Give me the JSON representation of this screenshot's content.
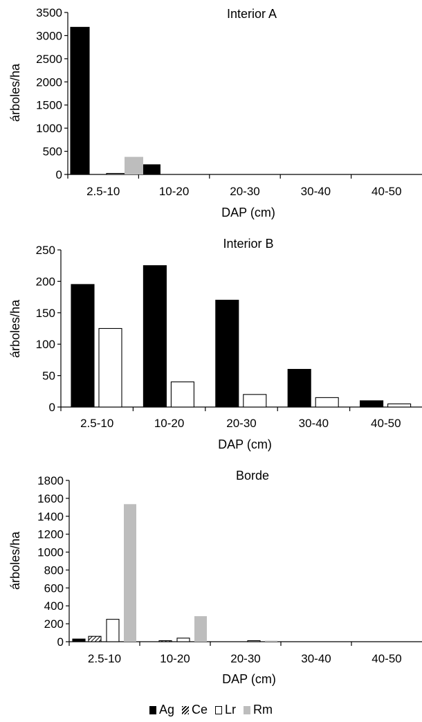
{
  "colors": {
    "Ag": "#000000",
    "Ce": "hatch",
    "Lr": "#ffffff",
    "Rm": "#bdbdbd"
  },
  "legend": {
    "Ag": "Ag",
    "Ce": "Ce",
    "Lr": "Lr",
    "Rm": "Rm"
  },
  "chart_data": [
    {
      "type": "bar",
      "title": "Interior A",
      "xlabel": "DAP (cm)",
      "ylabel": "árboles/ha",
      "categories": [
        "2.5-10",
        "10-20",
        "20-30",
        "30-40",
        "40-50"
      ],
      "ylim": [
        0,
        3500
      ],
      "yticks": [
        0,
        500,
        1000,
        1500,
        2000,
        2500,
        3000,
        3500
      ],
      "series": [
        {
          "name": "Ag",
          "values": [
            3180,
            210,
            0,
            0,
            0
          ]
        },
        {
          "name": "Ce",
          "values": [
            0,
            0,
            0,
            0,
            0
          ]
        },
        {
          "name": "Lr",
          "values": [
            20,
            0,
            0,
            0,
            0
          ]
        },
        {
          "name": "Rm",
          "values": [
            380,
            0,
            0,
            0,
            0
          ]
        }
      ]
    },
    {
      "type": "bar",
      "title": "Interior B",
      "xlabel": "DAP (cm)",
      "ylabel": "árboles/ha",
      "categories": [
        "2.5-10",
        "10-20",
        "20-30",
        "30-40",
        "40-50"
      ],
      "ylim": [
        0,
        250
      ],
      "yticks": [
        0,
        50,
        100,
        150,
        200,
        250
      ],
      "series": [
        {
          "name": "Ag",
          "values": [
            195,
            225,
            170,
            60,
            10
          ]
        },
        {
          "name": "Lr",
          "values": [
            125,
            40,
            20,
            15,
            5
          ]
        }
      ]
    },
    {
      "type": "bar",
      "title": "Borde",
      "xlabel": "DAP (cm)",
      "ylabel": "árboles/ha",
      "categories": [
        "2.5-10",
        "10-20",
        "20-30",
        "30-40",
        "40-50"
      ],
      "ylim": [
        0,
        1800
      ],
      "yticks": [
        0,
        200,
        400,
        600,
        800,
        1000,
        1200,
        1400,
        1600,
        1800
      ],
      "series": [
        {
          "name": "Ag",
          "values": [
            30,
            0,
            0,
            0,
            0
          ]
        },
        {
          "name": "Ce",
          "values": [
            60,
            10,
            0,
            0,
            0
          ]
        },
        {
          "name": "Lr",
          "values": [
            250,
            40,
            10,
            0,
            0
          ]
        },
        {
          "name": "Rm",
          "values": [
            1535,
            285,
            10,
            0,
            0
          ]
        }
      ]
    }
  ]
}
